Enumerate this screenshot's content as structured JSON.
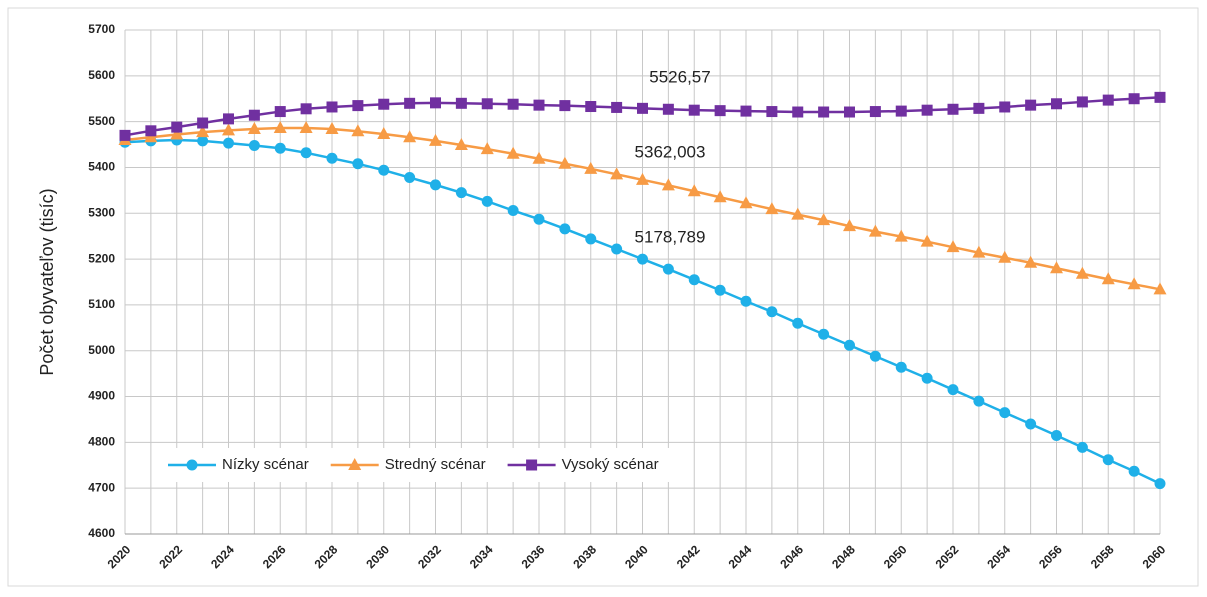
{
  "chart_data": {
    "type": "line",
    "y_label": "Počet obyvateľov (tisíc)",
    "categories": [
      "2020",
      null,
      "2022",
      null,
      "2024",
      null,
      "2026",
      null,
      "2028",
      null,
      "2030",
      null,
      "2032",
      null,
      "2034",
      null,
      "2036",
      null,
      "2038",
      null,
      "2040",
      null,
      "2042",
      null,
      "2044",
      null,
      "2046",
      null,
      "2048",
      null,
      "2050",
      null,
      "2052",
      null,
      "2054",
      null,
      "2056",
      null,
      "2058",
      null,
      "2060"
    ],
    "series": [
      {
        "name": "Nízky scénar",
        "color": "#1fb0e8",
        "marker": "circle",
        "values": [
          5455,
          5458,
          5460,
          5458,
          5453,
          5448,
          5442,
          5432,
          5420,
          5408,
          5394,
          5378,
          5362,
          5345,
          5326,
          5306,
          5287,
          5266,
          5244,
          5222,
          5200,
          5178,
          5155,
          5132,
          5108,
          5085,
          5060,
          5036,
          5012,
          4988,
          4964,
          4940,
          4915,
          4890,
          4865,
          4840,
          4815,
          4789,
          4762,
          4737,
          4710
        ]
      },
      {
        "name": "Stredný scénar",
        "color": "#f79b45",
        "marker": "triangle",
        "values": [
          5460,
          5466,
          5472,
          5477,
          5481,
          5484,
          5486,
          5486,
          5484,
          5479,
          5473,
          5466,
          5458,
          5449,
          5440,
          5430,
          5419,
          5408,
          5397,
          5385,
          5373,
          5361,
          5348,
          5335,
          5322,
          5309,
          5297,
          5285,
          5272,
          5260,
          5249,
          5238,
          5226,
          5214,
          5203,
          5192,
          5180,
          5168,
          5156,
          5145,
          5134
        ]
      },
      {
        "name": "Vysoký scénar",
        "color": "#7030a0",
        "marker": "square",
        "values": [
          5470,
          5480,
          5488,
          5497,
          5506,
          5514,
          5522,
          5528,
          5532,
          5535,
          5538,
          5540,
          5541,
          5540,
          5539,
          5538,
          5536,
          5535,
          5533,
          5531,
          5529,
          5527,
          5525,
          5524,
          5523,
          5522,
          5521,
          5521,
          5521,
          5522,
          5523,
          5525,
          5527,
          5529,
          5532,
          5536,
          5539,
          5543,
          5547,
          5550,
          5553
        ]
      }
    ],
    "annotations": [
      "5526,57",
      "5362,003",
      "5178,789"
    ],
    "ylim": [
      4600,
      5700
    ],
    "yticks": [
      4600,
      4700,
      4800,
      4900,
      5000,
      5100,
      5200,
      5300,
      5400,
      5500,
      5600,
      5700
    ],
    "grid": true,
    "legend": "lower left"
  }
}
